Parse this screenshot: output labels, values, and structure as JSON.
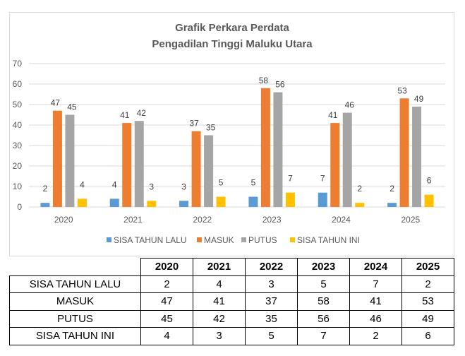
{
  "chart_data": {
    "type": "bar",
    "title": [
      "Grafik Perkara Perdata",
      "Pengadilan Tinggi Maluku Utara"
    ],
    "categories": [
      "2020",
      "2021",
      "2022",
      "2023",
      "2024",
      "2025"
    ],
    "series": [
      {
        "name": "SISA TAHUN LALU",
        "color": "#5b9bd5",
        "values": [
          2,
          4,
          3,
          5,
          7,
          2
        ]
      },
      {
        "name": "MASUK",
        "color": "#ed7d31",
        "values": [
          47,
          41,
          37,
          58,
          41,
          53
        ]
      },
      {
        "name": "PUTUS",
        "color": "#a5a5a5",
        "values": [
          45,
          42,
          35,
          56,
          46,
          49
        ]
      },
      {
        "name": "SISA TAHUN INI",
        "color": "#ffc000",
        "values": [
          4,
          3,
          5,
          7,
          2,
          6
        ]
      }
    ],
    "ylim": [
      0,
      70
    ],
    "yticks": [
      0,
      10,
      20,
      30,
      40,
      50,
      60,
      70
    ],
    "grid": true,
    "legend": "bottom",
    "xlabel": "",
    "ylabel": ""
  }
}
